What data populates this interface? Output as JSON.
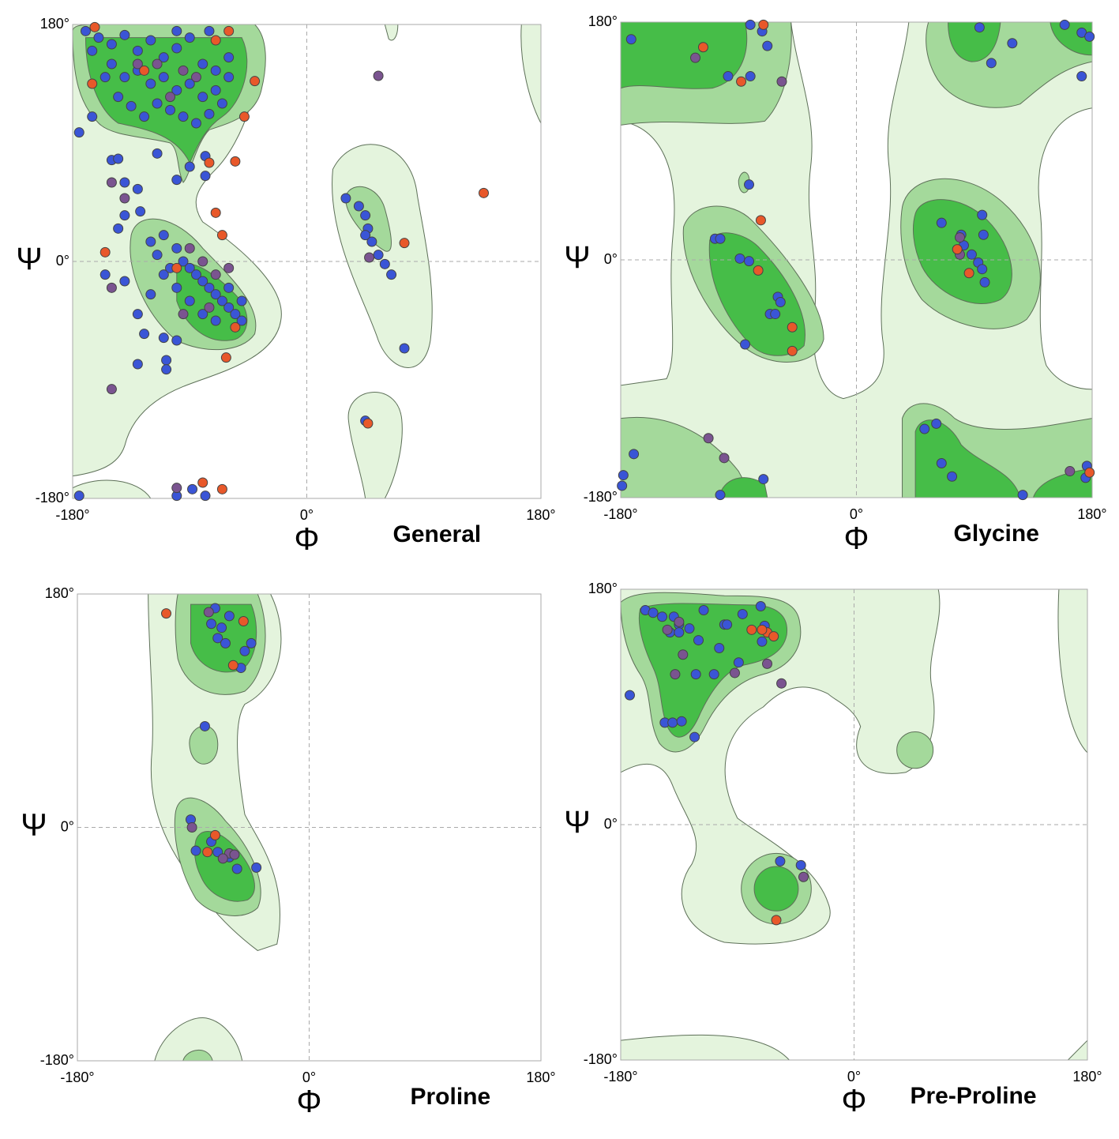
{
  "chart_data": [
    {
      "type": "scatter",
      "title": "General",
      "xlabel": "Φ",
      "ylabel": "Ψ",
      "xlim": [
        -180,
        180
      ],
      "ylim": [
        -180,
        180
      ],
      "xticks": [
        {
          "value": -180,
          "label": "-180°"
        },
        {
          "value": 0,
          "label": "0°"
        },
        {
          "value": 180,
          "label": "180°"
        }
      ],
      "yticks": [
        {
          "value": -180,
          "label": "-180°"
        },
        {
          "value": 0,
          "label": "0°"
        },
        {
          "value": 180,
          "label": "180°"
        }
      ],
      "grid": true,
      "series": [
        {
          "color": "#3a55d6",
          "x": [
            -160,
            -150,
            -140,
            -130,
            -120,
            -110,
            -100,
            -90,
            -80,
            -70,
            -150,
            -140,
            -130,
            -120,
            -110,
            -100,
            -90,
            -80,
            -70,
            -60,
            -165,
            -155,
            -145,
            -135,
            -125,
            -115,
            -105,
            -95,
            -85,
            -75,
            -65,
            -170,
            -100,
            -75,
            -60,
            -175,
            -165,
            -150,
            -145,
            -140,
            -130,
            -115,
            -100,
            -90,
            -78,
            -78,
            -140,
            -128,
            -120,
            -110,
            -100,
            -95,
            -90,
            -85,
            -80,
            -75,
            -70,
            -65,
            -60,
            -55,
            -50,
            -70,
            -80,
            -90,
            -100,
            -110,
            -115,
            -105,
            -60,
            -50,
            -120,
            -130,
            -125,
            -110,
            -100,
            -140,
            -145,
            -155,
            -108,
            -108,
            -130,
            30,
            40,
            45,
            47,
            50,
            55,
            60,
            65,
            45,
            75,
            45,
            -175,
            -100,
            -88,
            -78
          ],
          "y": [
            170,
            165,
            172,
            160,
            168,
            155,
            162,
            170,
            150,
            145,
            150,
            140,
            145,
            135,
            140,
            130,
            135,
            125,
            130,
            140,
            160,
            140,
            125,
            118,
            110,
            120,
            115,
            110,
            105,
            112,
            120,
            175,
            175,
            175,
            155,
            98,
            110,
            77,
            78,
            60,
            55,
            82,
            62,
            72,
            80,
            65,
            35,
            38,
            15,
            20,
            10,
            0,
            -5,
            -10,
            -15,
            -20,
            -25,
            -30,
            -35,
            -40,
            -45,
            -45,
            -40,
            -30,
            -20,
            -10,
            5,
            -5,
            -20,
            -30,
            -25,
            -40,
            -55,
            -58,
            -60,
            -15,
            25,
            -10,
            -75,
            -82,
            -78,
            48,
            42,
            35,
            25,
            15,
            5,
            -2,
            -10,
            20,
            -66,
            -121,
            -178,
            -178,
            -173,
            -178
          ]
        },
        {
          "color": "#7a5490",
          "x": [
            -130,
            -115,
            -95,
            -85,
            -105,
            -150,
            -140,
            -90,
            -80,
            -70,
            -60,
            -75,
            -95,
            -150,
            -150,
            55,
            48,
            -100
          ],
          "y": [
            150,
            150,
            145,
            140,
            125,
            60,
            48,
            10,
            0,
            -10,
            -5,
            -35,
            -40,
            -20,
            -97,
            141,
            3,
            -172
          ]
        },
        {
          "color": "#e8582a",
          "x": [
            -163,
            -165,
            -125,
            -70,
            -60,
            -40,
            -48,
            -75,
            -55,
            -70,
            -155,
            -62,
            -100,
            -65,
            -55,
            75,
            47,
            136,
            -80,
            -65
          ],
          "y": [
            178,
            135,
            145,
            168,
            175,
            137,
            110,
            75,
            76,
            37,
            7,
            -73,
            -5,
            20,
            -50,
            14,
            -123,
            52,
            -168,
            -173
          ]
        }
      ]
    },
    {
      "type": "scatter",
      "title": "Glycine",
      "xlabel": "Φ",
      "ylabel": "Ψ",
      "xlim": [
        -180,
        180
      ],
      "ylim": [
        -180,
        180
      ],
      "xticks": [
        {
          "value": -180,
          "label": "-180°"
        },
        {
          "value": 0,
          "label": "0°"
        },
        {
          "value": 180,
          "label": "180°"
        }
      ],
      "yticks": [
        {
          "value": -180,
          "label": "-180°"
        },
        {
          "value": 0,
          "label": "0°"
        },
        {
          "value": 180,
          "label": "180°"
        }
      ],
      "grid": true,
      "series": [
        {
          "color": "#3a55d6",
          "x": [
            -172,
            -81,
            -72,
            -68,
            -98,
            -81,
            94,
            119,
            103,
            159,
            172,
            172,
            178,
            -82,
            -108,
            -104,
            -89,
            -82,
            -60,
            -58,
            -66,
            -62,
            -85,
            65,
            80,
            82,
            96,
            97,
            93,
            98,
            88,
            96,
            52,
            61,
            65,
            73,
            127,
            -170,
            -178,
            -179,
            -104,
            -71,
            175,
            176
          ],
          "y": [
            167,
            178,
            173,
            162,
            139,
            139,
            176,
            164,
            149,
            178,
            172,
            139,
            169,
            57,
            16,
            16,
            1,
            -1,
            -28,
            -32,
            -41,
            -41,
            -64,
            28,
            19,
            11,
            34,
            19,
            -2,
            -17,
            4,
            -7,
            -128,
            -124,
            -154,
            -164,
            -178,
            -147,
            -163,
            -171,
            -178,
            -166,
            -165,
            -156
          ]
        },
        {
          "color": "#7a5490",
          "x": [
            -123,
            -57,
            79,
            -113,
            -101,
            163,
            79
          ],
          "y": [
            153,
            135,
            4,
            -135,
            -150,
            -160,
            17
          ]
        },
        {
          "color": "#e8582a",
          "x": [
            -117,
            -88,
            -71,
            -73,
            -75,
            -49,
            -49,
            77,
            86,
            178
          ],
          "y": [
            161,
            135,
            178,
            30,
            -8,
            -51,
            -69,
            8,
            -10,
            -161
          ]
        }
      ]
    },
    {
      "type": "scatter",
      "title": "Proline",
      "xlabel": "Φ",
      "ylabel": "Ψ",
      "xlim": [
        -180,
        180
      ],
      "ylim": [
        -180,
        180
      ],
      "xticks": [
        {
          "value": -180,
          "label": "-180°"
        },
        {
          "value": 0,
          "label": "0°"
        },
        {
          "value": 180,
          "label": "180°"
        }
      ],
      "yticks": [
        {
          "value": -180,
          "label": "-180°"
        },
        {
          "value": 0,
          "label": "0°"
        },
        {
          "value": 180,
          "label": "180°"
        }
      ],
      "grid": true,
      "series": [
        {
          "color": "#3a55d6",
          "x": [
            -73,
            -62,
            -76,
            -68,
            -71,
            -65,
            -50,
            -45,
            -53,
            -81,
            -92,
            -88,
            -71,
            -62,
            -56,
            -41,
            -76
          ],
          "y": [
            169,
            163,
            157,
            154,
            146,
            142,
            136,
            142,
            123,
            78,
            6,
            -18,
            -19,
            -23,
            -32,
            -31,
            -11
          ]
        },
        {
          "color": "#7a5490",
          "x": [
            -91,
            -78,
            -62,
            -58,
            -67
          ],
          "y": [
            0,
            166,
            -20,
            -21,
            -24
          ]
        },
        {
          "color": "#e8582a",
          "x": [
            -111,
            -51,
            -59,
            -79,
            -73
          ],
          "y": [
            165,
            159,
            125,
            -19,
            -6
          ]
        }
      ]
    },
    {
      "type": "scatter",
      "title": "Pre-Proline",
      "xlabel": "Φ",
      "ylabel": "Ψ",
      "xlim": [
        -180,
        180
      ],
      "ylim": [
        -180,
        180
      ],
      "xticks": [
        {
          "value": -180,
          "label": "-180°"
        },
        {
          "value": 0,
          "label": "0°"
        },
        {
          "value": 180,
          "label": "180°"
        }
      ],
      "yticks": [
        {
          "value": -180,
          "label": "-180°"
        },
        {
          "value": 0,
          "label": "0°"
        },
        {
          "value": 180,
          "label": "180°"
        }
      ],
      "grid": true,
      "series": [
        {
          "color": "#3a55d6",
          "x": [
            -161,
            -155,
            -148,
            -139,
            -135,
            -127,
            -116,
            -100,
            -98,
            -72,
            -86,
            -69,
            -104,
            -120,
            -89,
            -71,
            -122,
            -108,
            -146,
            -140,
            -133,
            -123,
            -173,
            -57,
            -41,
            -142,
            -135
          ],
          "y": [
            164,
            162,
            159,
            159,
            153,
            150,
            164,
            153,
            153,
            167,
            161,
            152,
            135,
            141,
            124,
            140,
            115,
            115,
            78,
            78,
            79,
            67,
            99,
            -28,
            -31,
            147,
            147
          ]
        },
        {
          "color": "#7a5490",
          "x": [
            -132,
            -138,
            -92,
            -56,
            -67,
            -39,
            -135,
            -144
          ],
          "y": [
            130,
            115,
            116,
            108,
            123,
            -40,
            155,
            149
          ]
        },
        {
          "color": "#e8582a",
          "x": [
            -79,
            -67,
            -62,
            -60,
            -71
          ],
          "y": [
            149,
            147,
            144,
            -73,
            149
          ]
        }
      ]
    }
  ]
}
